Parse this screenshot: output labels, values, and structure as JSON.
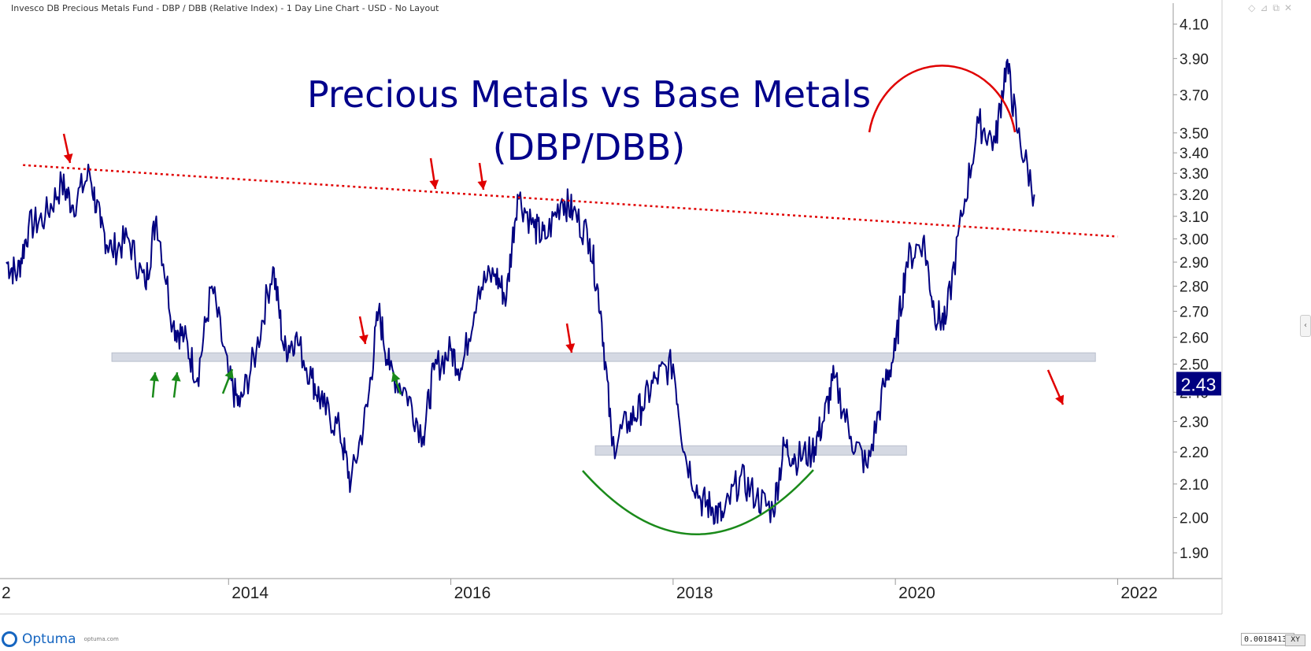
{
  "window": {
    "title": "Invesco DB Precious Metals Fund - DBP / DBB (Relative Index) - 1 Day Line Chart - USD - No Layout",
    "icons": [
      "diamond-icon",
      "pin-icon",
      "restore-icon",
      "close-icon"
    ]
  },
  "footer": {
    "brand": "Optuma",
    "brand_url": "optuma.com",
    "scale_value": "0.0018413",
    "scale_button": "XY"
  },
  "chart_data": {
    "type": "line",
    "title": "Precious Metals vs Base Metals",
    "subtitle": "(DBP/DBB)",
    "y_scale": "log",
    "ylim": [
      1.83,
      4.16
    ],
    "xlim": [
      2012.0,
      2022.5
    ],
    "y_ticks": [
      "4.10",
      "3.90",
      "3.70",
      "3.50",
      "3.40",
      "3.30",
      "3.20",
      "3.10",
      "3.00",
      "2.90",
      "2.80",
      "2.70",
      "2.60",
      "2.50",
      "2.40",
      "2.30",
      "2.20",
      "2.10",
      "2.00",
      "1.90"
    ],
    "x_ticks": [
      "2014",
      "2016",
      "2018",
      "2020",
      "2022"
    ],
    "x_edge_label": "2",
    "last_value": "2.43",
    "series": [
      {
        "color": "#000080",
        "x": [
          2012.0,
          2012.1,
          2012.2,
          2012.35,
          2012.5,
          2012.6,
          2012.75,
          2012.85,
          2012.95,
          2013.1,
          2013.25,
          2013.35,
          2013.5,
          2013.6,
          2013.72,
          2013.85,
          2014.0,
          2014.1,
          2014.25,
          2014.4,
          2014.5,
          2014.6,
          2014.75,
          2014.85,
          2015.0,
          2015.1,
          2015.25,
          2015.35,
          2015.45,
          2015.6,
          2015.75,
          2015.85,
          2016.0,
          2016.1,
          2016.25,
          2016.4,
          2016.5,
          2016.6,
          2016.75,
          2016.85,
          2017.0,
          2017.1,
          2017.25,
          2017.35,
          2017.45,
          2017.6,
          2017.72,
          2017.85,
          2018.0,
          2018.1,
          2018.25,
          2018.35,
          2018.45,
          2018.6,
          2018.75,
          2018.9,
          2019.0,
          2019.1,
          2019.25,
          2019.35,
          2019.45,
          2019.6,
          2019.75,
          2019.9,
          2020.0,
          2020.1,
          2020.25,
          2020.35,
          2020.45,
          2020.6,
          2020.75,
          2020.9,
          2021.0,
          2021.1,
          2021.25
        ],
        "values": [
          2.9,
          2.85,
          3.05,
          3.1,
          3.25,
          3.15,
          3.3,
          3.05,
          2.95,
          3.0,
          2.8,
          3.1,
          2.65,
          2.6,
          2.45,
          2.8,
          2.45,
          2.35,
          2.55,
          2.88,
          2.55,
          2.6,
          2.45,
          2.35,
          2.27,
          2.1,
          2.35,
          2.7,
          2.48,
          2.4,
          2.25,
          2.48,
          2.55,
          2.48,
          2.8,
          2.85,
          2.75,
          3.2,
          3.05,
          3.0,
          3.18,
          3.12,
          3.0,
          2.7,
          2.22,
          2.3,
          2.35,
          2.45,
          2.5,
          2.2,
          2.05,
          2.03,
          2.0,
          2.12,
          2.06,
          2.02,
          2.22,
          2.18,
          2.2,
          2.3,
          2.45,
          2.25,
          2.15,
          2.42,
          2.55,
          2.9,
          3.0,
          2.7,
          2.65,
          3.1,
          3.55,
          3.45,
          3.88,
          3.5,
          3.2
        ]
      }
    ],
    "resistance_line": {
      "from": [
        2012.15,
        3.34
      ],
      "to": [
        2022.0,
        3.01
      ]
    },
    "support_zones": [
      {
        "from_x": 2012.95,
        "to_x": 2021.8,
        "low": 2.51,
        "high": 2.53
      },
      {
        "from_x": 2017.3,
        "to_x": 2020.1,
        "low": 2.19,
        "high": 2.21
      }
    ]
  }
}
